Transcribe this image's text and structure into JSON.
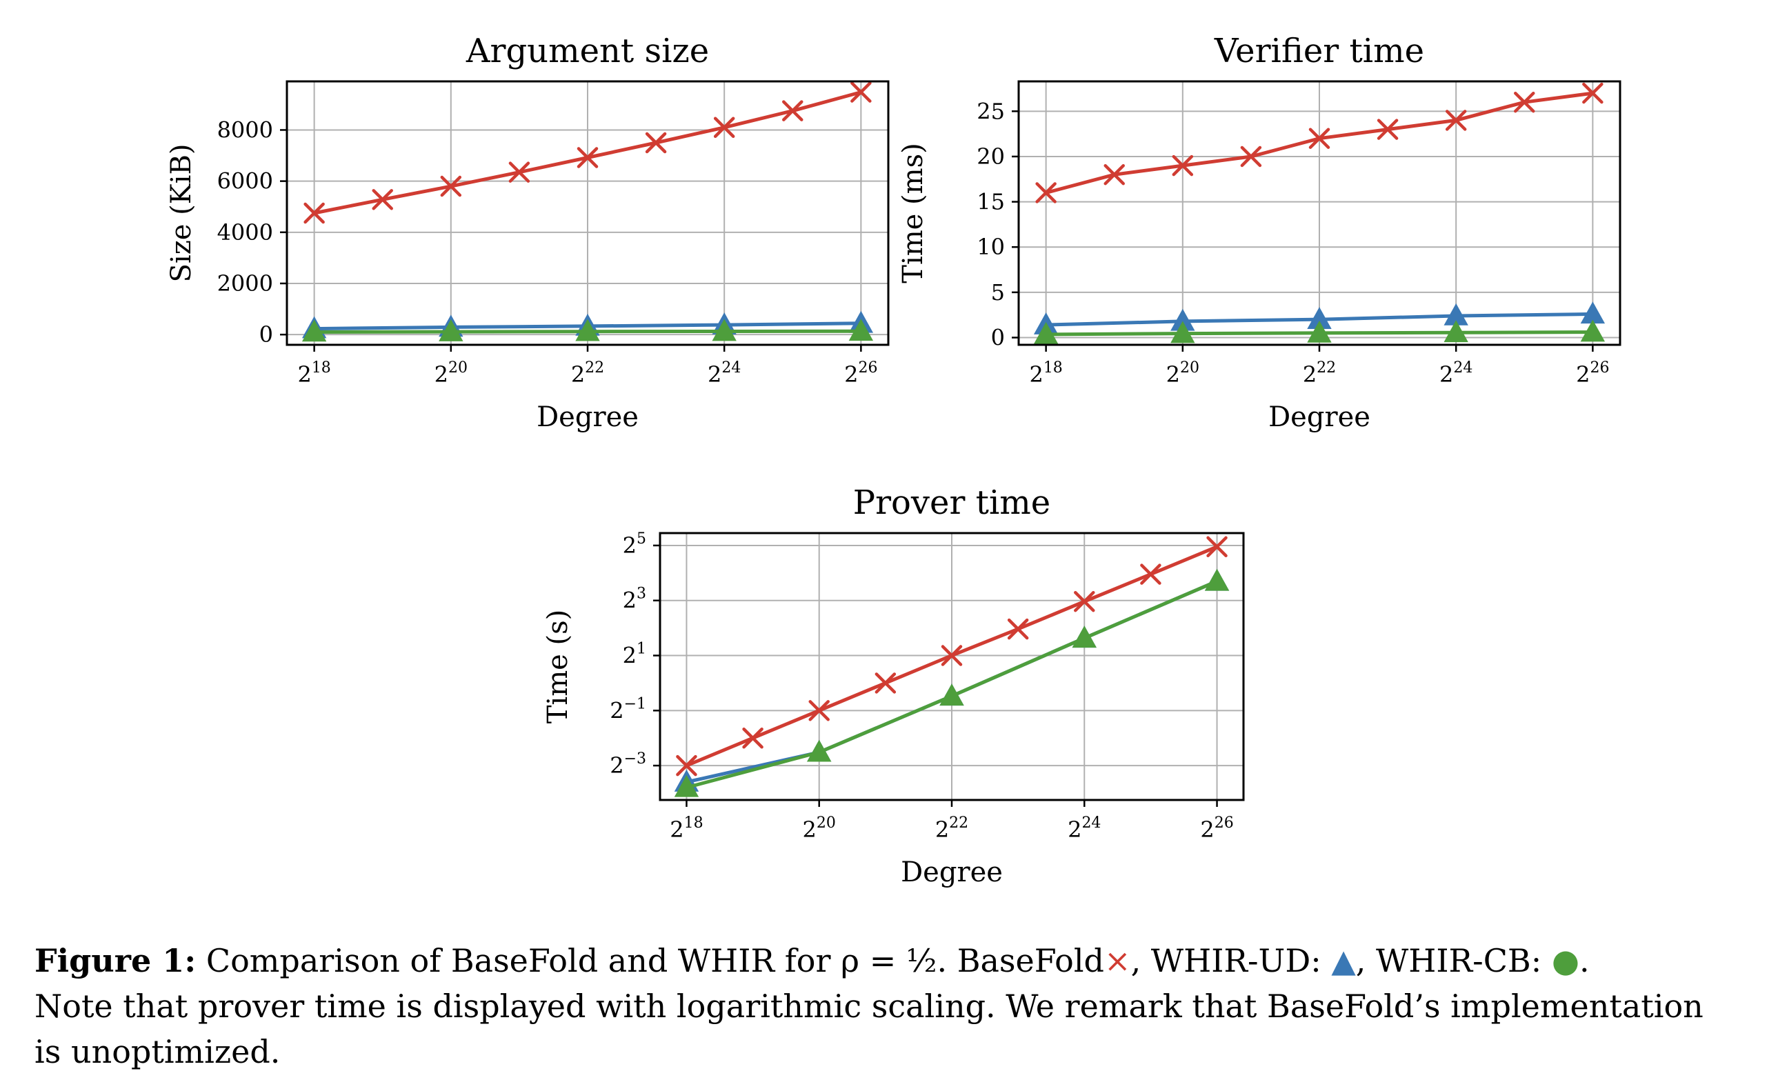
{
  "colors": {
    "basefold": "#d03c32",
    "whir_ud": "#3a78b5",
    "whir_cb": "#4e9e3c",
    "grid": "#b0b0b0"
  },
  "chart_data": [
    {
      "id": "argument-size",
      "type": "line",
      "title": "Argument size",
      "xlabel": "Degree",
      "ylabel": "Size (KiB)",
      "x_scale": "log2",
      "x": [
        18,
        19,
        20,
        21,
        22,
        23,
        24,
        25,
        26
      ],
      "x_ticks": [
        18,
        20,
        22,
        24,
        26
      ],
      "x_tick_labels": [
        {
          "base": "2",
          "exp": "18"
        },
        {
          "base": "2",
          "exp": "20"
        },
        {
          "base": "2",
          "exp": "22"
        },
        {
          "base": "2",
          "exp": "24"
        },
        {
          "base": "2",
          "exp": "26"
        }
      ],
      "xlim": [
        17.6,
        26.4
      ],
      "y_scale": "linear",
      "ylim": [
        -400,
        9900
      ],
      "y_ticks": [
        0,
        2000,
        4000,
        6000,
        8000
      ],
      "y_tick_labels": [
        "0",
        "2000",
        "4000",
        "6000",
        "8000"
      ],
      "grid": true,
      "series": [
        {
          "key": "basefold",
          "marker": "x",
          "x": [
            18,
            19,
            20,
            21,
            22,
            23,
            24,
            25,
            26
          ],
          "values": [
            4750,
            5280,
            5800,
            6350,
            6920,
            7500,
            8100,
            8750,
            9480
          ]
        },
        {
          "key": "whir_ud",
          "marker": "triangle",
          "x": [
            18,
            20,
            22,
            24,
            26
          ],
          "values": [
            230,
            290,
            330,
            380,
            440
          ]
        },
        {
          "key": "whir_cb",
          "marker": "triangle",
          "x": [
            18,
            20,
            22,
            24,
            26
          ],
          "values": [
            100,
            110,
            120,
            125,
            130
          ]
        }
      ]
    },
    {
      "id": "verifier-time",
      "type": "line",
      "title": "Verifier time",
      "xlabel": "Degree",
      "ylabel": "Time (ms)",
      "x_scale": "log2",
      "x": [
        18,
        19,
        20,
        21,
        22,
        23,
        24,
        25,
        26
      ],
      "x_ticks": [
        18,
        20,
        22,
        24,
        26
      ],
      "x_tick_labels": [
        {
          "base": "2",
          "exp": "18"
        },
        {
          "base": "2",
          "exp": "20"
        },
        {
          "base": "2",
          "exp": "22"
        },
        {
          "base": "2",
          "exp": "24"
        },
        {
          "base": "2",
          "exp": "26"
        }
      ],
      "xlim": [
        17.6,
        26.4
      ],
      "y_scale": "linear",
      "ylim": [
        -0.8,
        28.3
      ],
      "y_ticks": [
        0,
        5,
        10,
        15,
        20,
        25
      ],
      "y_tick_labels": [
        "0",
        "5",
        "10",
        "15",
        "20",
        "25"
      ],
      "grid": true,
      "series": [
        {
          "key": "basefold",
          "marker": "x",
          "x": [
            18,
            19,
            20,
            21,
            22,
            23,
            24,
            25,
            26
          ],
          "values": [
            16,
            18,
            19,
            20,
            22,
            23,
            24,
            26,
            27
          ]
        },
        {
          "key": "whir_ud",
          "marker": "triangle",
          "x": [
            18,
            20,
            22,
            24,
            26
          ],
          "values": [
            1.4,
            1.8,
            2.0,
            2.4,
            2.6
          ]
        },
        {
          "key": "whir_cb",
          "marker": "triangle",
          "x": [
            18,
            20,
            22,
            24,
            26
          ],
          "values": [
            0.35,
            0.45,
            0.5,
            0.55,
            0.6
          ]
        }
      ]
    },
    {
      "id": "prover-time",
      "type": "line",
      "title": "Prover time",
      "xlabel": "Degree",
      "ylabel": "Time (s)",
      "x_scale": "log2",
      "x": [
        18,
        19,
        20,
        21,
        22,
        23,
        24,
        25,
        26
      ],
      "x_ticks": [
        18,
        20,
        22,
        24,
        26
      ],
      "x_tick_labels": [
        {
          "base": "2",
          "exp": "18"
        },
        {
          "base": "2",
          "exp": "20"
        },
        {
          "base": "2",
          "exp": "22"
        },
        {
          "base": "2",
          "exp": "24"
        },
        {
          "base": "2",
          "exp": "26"
        }
      ],
      "xlim": [
        17.6,
        26.4
      ],
      "y_scale": "log2",
      "ylim": [
        -4.25,
        5.45
      ],
      "y_ticks": [
        -3,
        -1,
        1,
        3,
        5
      ],
      "y_tick_labels": [
        {
          "base": "2",
          "exp": "−3"
        },
        {
          "base": "2",
          "exp": "−1"
        },
        {
          "base": "2",
          "exp": "1"
        },
        {
          "base": "2",
          "exp": "3"
        },
        {
          "base": "2",
          "exp": "5"
        }
      ],
      "grid": true,
      "series": [
        {
          "key": "basefold",
          "marker": "x",
          "x": [
            18,
            19,
            20,
            21,
            22,
            23,
            24,
            25,
            26
          ],
          "values": [
            0.125,
            0.25,
            0.5,
            1.0,
            2.0,
            3.9,
            7.8,
            15.5,
            31.0
          ]
        },
        {
          "key": "whir_ud",
          "marker": "triangle",
          "x": [
            18,
            20,
            22,
            24,
            26
          ],
          "values": [
            0.0825,
            0.175,
            0.72,
            3.1,
            13.0
          ]
        },
        {
          "key": "whir_cb",
          "marker": "triangle",
          "x": [
            18,
            20,
            22,
            24,
            26
          ],
          "values": [
            0.072,
            0.175,
            0.72,
            3.1,
            13.0
          ]
        }
      ]
    }
  ],
  "caption": {
    "label": "Figure 1:",
    "line1_text": "Comparison of BaseFold and WHIR for ρ = ¹⁄₂. BaseFold",
    "marker_basefold": "×",
    "whir_ud_text": ", WHIR-UD: ",
    "marker_whir_ud": "▲",
    "whir_cb_text": ", WHIR-CB: ",
    "marker_whir_cb": "●",
    "line1_end": ".",
    "line2": "Note that prover time is displayed with logarithmic scaling. We remark that BaseFold’s implementation",
    "line3": "is unoptimized."
  }
}
